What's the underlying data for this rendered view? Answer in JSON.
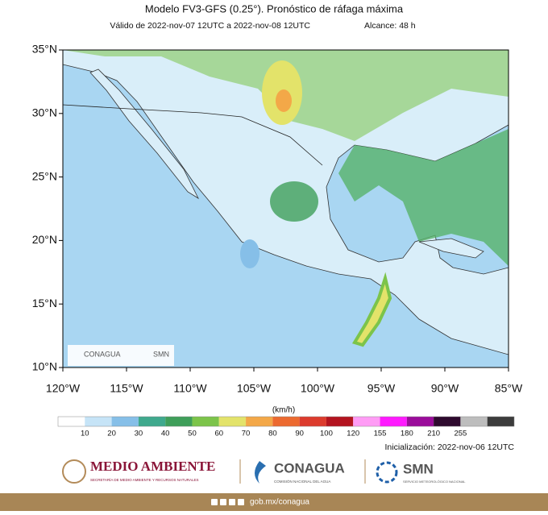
{
  "title": "Modelo FV3-GFS (0.25°). Pronóstico de ráfaga máxima",
  "valid": "Válido de 2022-nov-07 12UTC a 2022-nov-08 12UTC",
  "range": "Alcance: 48 h",
  "map": {
    "lat_range": [
      10,
      35
    ],
    "lon_range": [
      -120,
      -85
    ],
    "lat_ticks": [
      {
        "value": 35,
        "label": "35°N"
      },
      {
        "value": 30,
        "label": "30°N"
      },
      {
        "value": 25,
        "label": "25°N"
      },
      {
        "value": 20,
        "label": "20°N"
      },
      {
        "value": 15,
        "label": "15°N"
      },
      {
        "value": 10,
        "label": "10°N"
      }
    ],
    "lon_ticks": [
      {
        "value": -120,
        "label": "120°W"
      },
      {
        "value": -115,
        "label": "115°W"
      },
      {
        "value": -110,
        "label": "110°W"
      },
      {
        "value": -105,
        "label": "105°W"
      },
      {
        "value": -100,
        "label": "100°W"
      },
      {
        "value": -95,
        "label": "95°W"
      },
      {
        "value": -90,
        "label": "90°W"
      },
      {
        "value": -85,
        "label": "85°W"
      }
    ],
    "logo_conagua": "CONAGUA",
    "logo_smn": "SMN"
  },
  "colorbar": {
    "unit": "(km/h)",
    "bounds": [
      10,
      20,
      30,
      40,
      50,
      60,
      70,
      80,
      90,
      100,
      120,
      155,
      180,
      210,
      255
    ],
    "colors": [
      "#ffffff",
      "#c6e4f7",
      "#86bfe8",
      "#3fa98d",
      "#3f9f5a",
      "#7cc44a",
      "#e3e36a",
      "#f3a848",
      "#ec6a30",
      "#dc3b2d",
      "#b3141f",
      "#ff9cf5",
      "#ff1aff",
      "#9b0d9b",
      "#2e0a2e",
      "#bdbdbd",
      "#3c3c3c"
    ]
  },
  "init": "Inicialización: 2022-nov-06 12UTC",
  "footer": {
    "semarnat": "MEDIO AMBIENTE",
    "semarnat_sub": "SECRETARÍA DE MEDIO AMBIENTE Y RECURSOS NATURALES",
    "conagua": "CONAGUA",
    "conagua_sub": "COMISIÓN NACIONAL DEL AGUA",
    "smn": "SMN",
    "smn_sub": "SERVICIO METEOROLÓGICO NACIONAL",
    "url": "gob.mx/conagua"
  }
}
